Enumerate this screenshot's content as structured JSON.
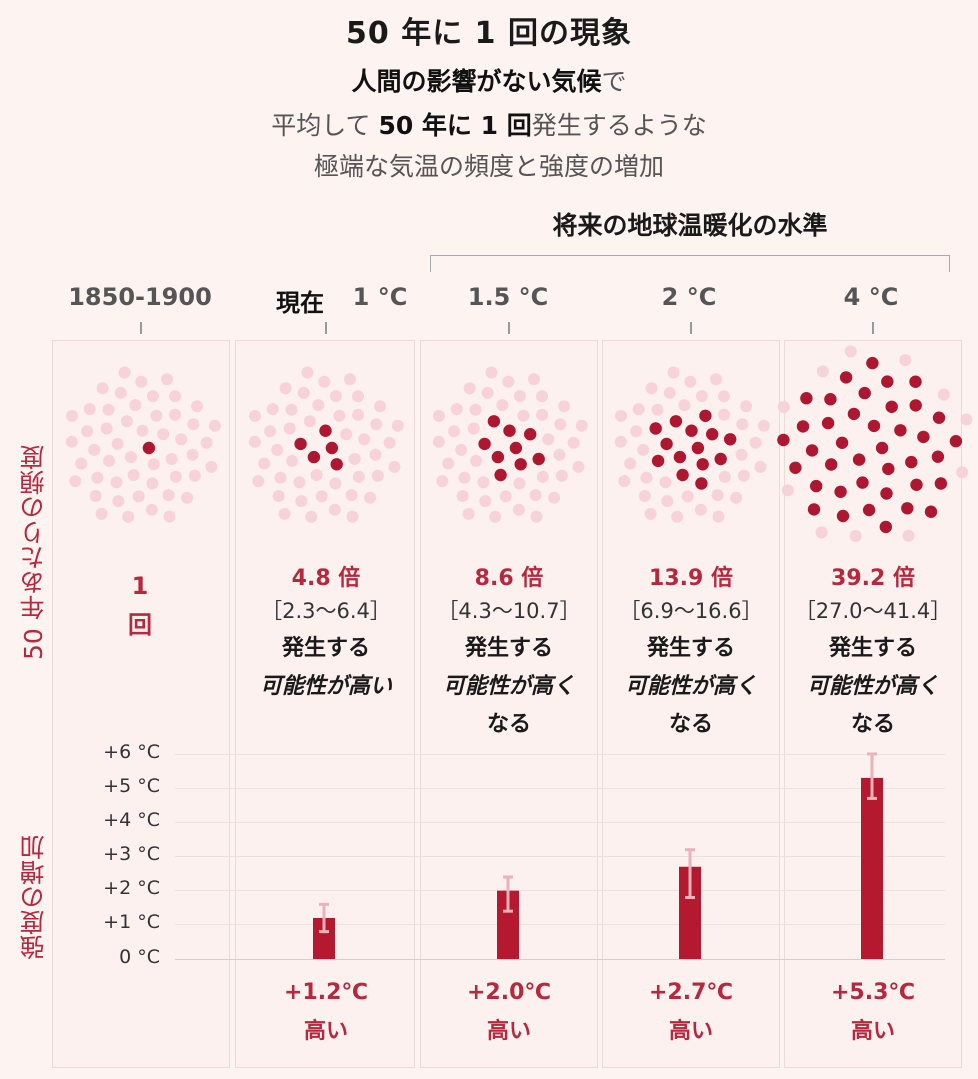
{
  "header": {
    "title": "50 年に 1 回の現象",
    "line1_bold": "人間の影響がない気候",
    "line1_normal": "で",
    "line2_pre": "平均して ",
    "line2_bold": "50 年に 1 回",
    "line2_post": "発生するような",
    "line3": "極端な気温の頻度と強度の増加"
  },
  "future_label": "将来の地球温暖化の水準",
  "columns": {
    "c0": "1850-1900",
    "c1_now": "現在",
    "c1_deg": "1 °C",
    "c2": "1.5 °C",
    "c3": "2 °C",
    "c4": "4 °C"
  },
  "side_labels": {
    "frequency": "50 年あたりの頻度",
    "intensity": "強度の増加"
  },
  "baseline": {
    "count": "1",
    "unit": "回"
  },
  "frequency": [
    {
      "mult": "4.8 倍",
      "range": "［2.3～6.4］",
      "occur": "発生する",
      "likely1": "可能性が高い",
      "likely2": ""
    },
    {
      "mult": "8.6 倍",
      "range": "［4.3～10.7］",
      "occur": "発生する",
      "likely1": "可能性が高く",
      "likely2": "なる"
    },
    {
      "mult": "13.9 倍",
      "range": "［6.9～16.6］",
      "occur": "発生する",
      "likely1": "可能性が高く",
      "likely2": "なる"
    },
    {
      "mult": "39.2 倍",
      "range": "［27.0～41.4］",
      "occur": "発生する",
      "likely1": "可能性が高く",
      "likely2": "なる"
    }
  ],
  "intensity": [
    {
      "label": "+1.2℃",
      "high": "高い"
    },
    {
      "label": "+2.0℃",
      "high": "高い"
    },
    {
      "label": "+2.7℃",
      "high": "高い"
    },
    {
      "label": "+5.3℃",
      "high": "高い"
    }
  ],
  "y_ticks": [
    "+6 °C",
    "+5 °C",
    "+4 °C",
    "+3 °C",
    "+2 °C",
    "+1 °C",
    "0 °C"
  ],
  "colors": {
    "accent": "#b5283d",
    "bar": "#b5192f",
    "dot_dark": "#ad1730",
    "dot_light": "#f7d2d9",
    "error": "#e9b3b9"
  },
  "chart_data": [
    {
      "type": "scatter",
      "categories": [
        "1850-1900",
        "1 °C",
        "1.5 °C",
        "2 °C",
        "4 °C"
      ],
      "values": [
        1,
        4.8,
        8.6,
        13.9,
        39.2
      ],
      "ranges": [
        null,
        [
          2.3,
          6.4
        ],
        [
          4.3,
          10.7
        ],
        [
          6.9,
          16.6
        ],
        [
          27.0,
          41.4
        ]
      ],
      "ylabel": "50 年あたりの頻度"
    },
    {
      "type": "bar",
      "categories": [
        "1 °C",
        "1.5 °C",
        "2 °C",
        "4 °C"
      ],
      "values": [
        1.2,
        2.0,
        2.7,
        5.3
      ],
      "error_low": [
        0.8,
        1.4,
        1.8,
        4.7
      ],
      "error_high": [
        1.6,
        2.4,
        3.2,
        6.0
      ],
      "ylabel": "強度の増加",
      "ylim": [
        0,
        6
      ],
      "grid": true
    }
  ]
}
